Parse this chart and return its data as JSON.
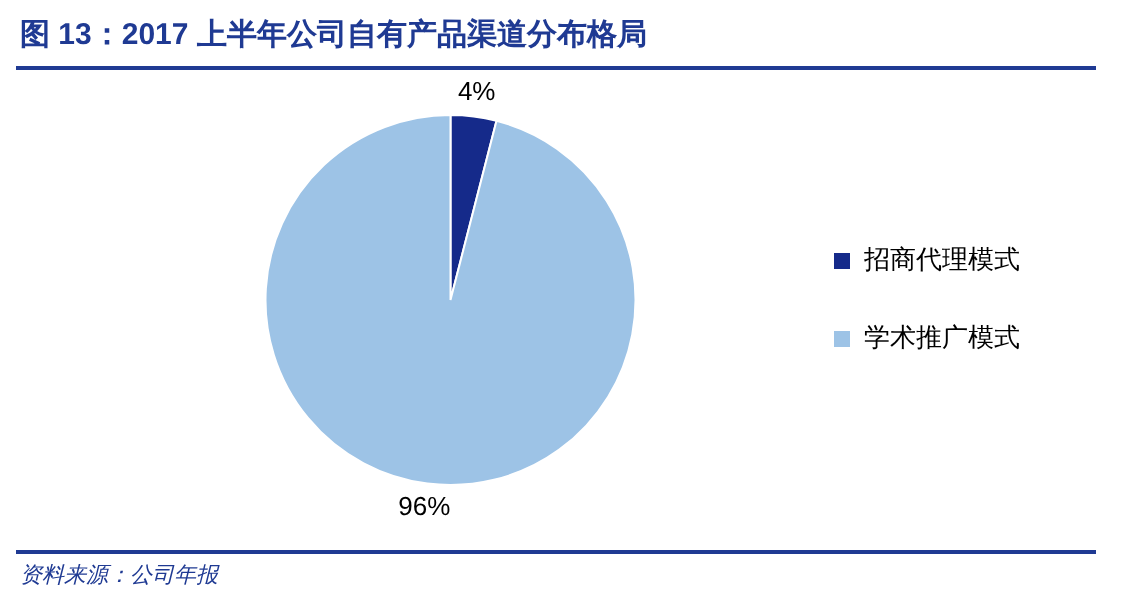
{
  "chart_data": {
    "type": "pie",
    "title": "图 13：2017 上半年公司自有产品渠道分布格局",
    "categories": [
      "招商代理模式",
      "学术推广模式"
    ],
    "values": [
      4,
      96
    ],
    "colors": [
      "#152a8a",
      "#9dc3e6"
    ],
    "value_labels": [
      "4%",
      "96%"
    ],
    "legend": "right",
    "annotations": [
      "资料来源：公司年报"
    ]
  }
}
